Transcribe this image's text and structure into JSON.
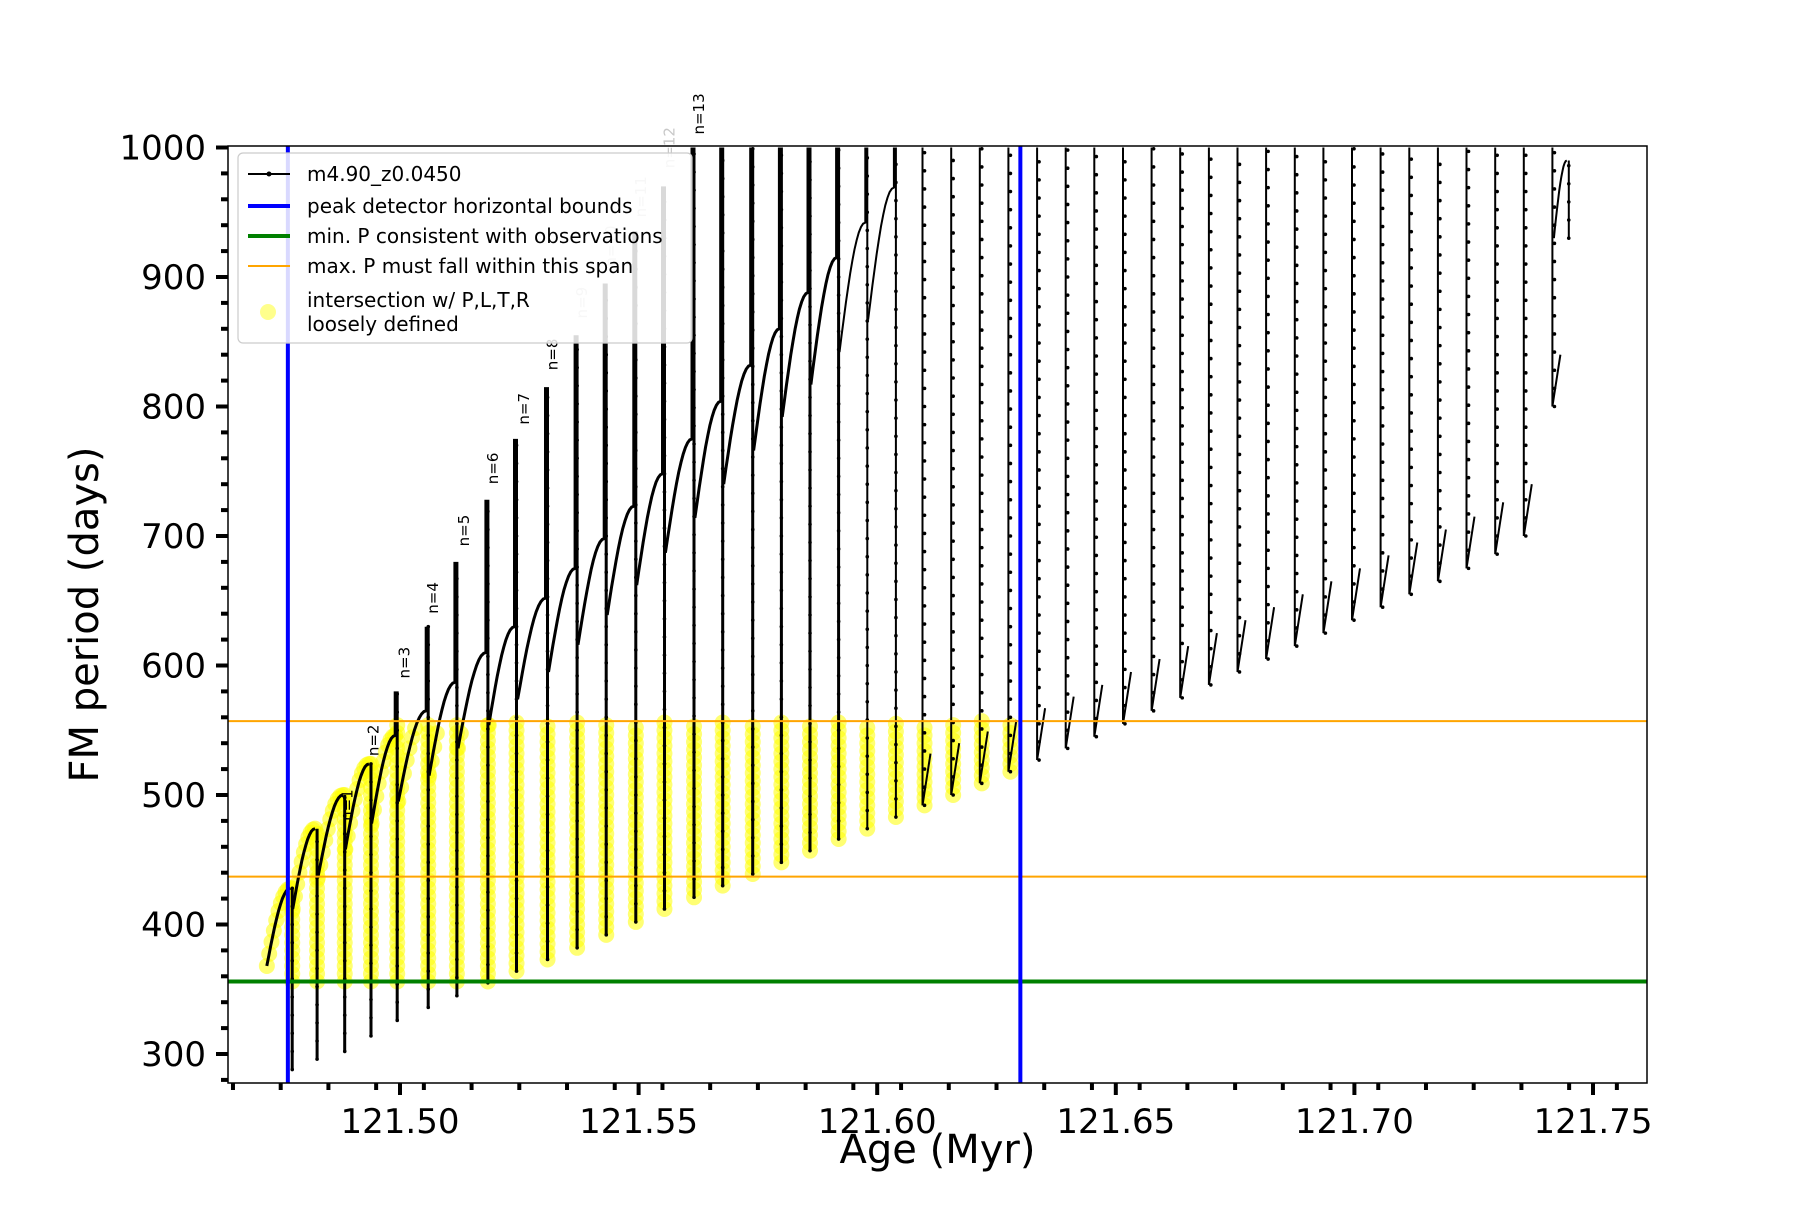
{
  "chart_data": {
    "type": "line",
    "title": "",
    "xlabel": "Age (Myr)",
    "ylabel": "FM period (days)",
    "xlim": [
      121.4625,
      121.7625
    ],
    "ylim": [
      277,
      1000
    ],
    "xticks": [
      "121.50",
      "121.55",
      "121.60",
      "121.65",
      "121.70",
      "121.75"
    ],
    "yticks": [
      "300",
      "400",
      "500",
      "600",
      "700",
      "800",
      "900",
      "1000"
    ],
    "grid": false,
    "legend": {
      "placement": "top-left",
      "entries": [
        {
          "label": "m4.90_z0.0450",
          "color": "#000000",
          "kind": "line-dot"
        },
        {
          "label": "peak detector horizontal bounds",
          "color": "#0000ff",
          "kind": "line"
        },
        {
          "label": "min. P consistent with observations",
          "color": "#008000",
          "kind": "line"
        },
        {
          "label": "max. P must fall within this span",
          "color": "#ffa500",
          "kind": "line"
        },
        {
          "label": "intersection w/ P,L,T,R\nloosely defined",
          "color": "#ffff00",
          "kind": "marker"
        }
      ]
    },
    "vlines": [
      {
        "x": 121.4765,
        "color": "#0000ff"
      },
      {
        "x": 121.63,
        "color": "#0000ff"
      }
    ],
    "hlines": [
      {
        "y": 557,
        "color": "#ffa500"
      },
      {
        "y": 437,
        "color": "#ffa500"
      },
      {
        "y": 356,
        "color": "#008000"
      }
    ],
    "series": [
      {
        "name": "m4.90_z0.0450",
        "color": "#000000",
        "cycles": [
          {
            "x": 121.477,
            "ymin": 288,
            "ymax": 428,
            "peak": 428
          },
          {
            "x": 121.4822,
            "ymin": 296,
            "ymax": 474,
            "peak": 474
          },
          {
            "x": 121.488,
            "ymin": 302,
            "ymax": 500,
            "peak": 500
          },
          {
            "x": 121.4935,
            "ymin": 314,
            "ymax": 524,
            "peak": 524
          },
          {
            "x": 121.499,
            "ymin": 326,
            "ymax": 580,
            "peak": 546
          },
          {
            "x": 121.5055,
            "ymin": 336,
            "ymax": 630,
            "peak": 565
          },
          {
            "x": 121.5115,
            "ymin": 345,
            "ymax": 680,
            "peak": 587
          },
          {
            "x": 121.518,
            "ymin": 355,
            "ymax": 728,
            "peak": 610
          },
          {
            "x": 121.524,
            "ymin": 364,
            "ymax": 775,
            "peak": 630
          },
          {
            "x": 121.5305,
            "ymin": 373,
            "ymax": 815,
            "peak": 652
          },
          {
            "x": 121.5367,
            "ymin": 382,
            "ymax": 855,
            "peak": 675
          },
          {
            "x": 121.5428,
            "ymin": 392,
            "ymax": 895,
            "peak": 698
          },
          {
            "x": 121.549,
            "ymin": 402,
            "ymax": 935,
            "peak": 723
          },
          {
            "x": 121.555,
            "ymin": 412,
            "ymax": 970,
            "peak": 748
          },
          {
            "x": 121.5612,
            "ymin": 421,
            "ymax": 1000,
            "peak": 775
          },
          {
            "x": 121.5672,
            "ymin": 430,
            "ymax": 1000,
            "peak": 804
          },
          {
            "x": 121.5735,
            "ymin": 439,
            "ymax": 1000,
            "peak": 832
          },
          {
            "x": 121.5795,
            "ymin": 448,
            "ymax": 1000,
            "peak": 860
          },
          {
            "x": 121.5855,
            "ymin": 457,
            "ymax": 1000,
            "peak": 888
          },
          {
            "x": 121.5915,
            "ymin": 466,
            "ymax": 1000,
            "peak": 915
          },
          {
            "x": 121.5975,
            "ymin": 474,
            "ymax": 1000,
            "peak": 942
          },
          {
            "x": 121.6035,
            "ymin": 483,
            "ymax": 1000,
            "peak": 969
          },
          {
            "x": 121.6095,
            "ymin": 492,
            "ymax": 1000,
            "peak": 1000
          },
          {
            "x": 121.6155,
            "ymin": 500,
            "ymax": 1000,
            "peak": 1000
          },
          {
            "x": 121.6215,
            "ymin": 509,
            "ymax": 1000,
            "peak": 1000
          },
          {
            "x": 121.6275,
            "ymin": 518,
            "ymax": 1000,
            "peak": 1000
          },
          {
            "x": 121.6335,
            "ymin": 527,
            "ymax": 1000,
            "peak": 1000
          },
          {
            "x": 121.6395,
            "ymin": 536,
            "ymax": 1000,
            "peak": 1000
          },
          {
            "x": 121.6455,
            "ymin": 545,
            "ymax": 1000,
            "peak": 1000
          },
          {
            "x": 121.6515,
            "ymin": 555,
            "ymax": 1000,
            "peak": 1000
          },
          {
            "x": 121.6575,
            "ymin": 565,
            "ymax": 1000,
            "peak": 1000
          },
          {
            "x": 121.6635,
            "ymin": 575,
            "ymax": 1000,
            "peak": 1000
          },
          {
            "x": 121.6695,
            "ymin": 585,
            "ymax": 1000,
            "peak": 1000
          },
          {
            "x": 121.6755,
            "ymin": 595,
            "ymax": 1000,
            "peak": 1000
          },
          {
            "x": 121.6815,
            "ymin": 605,
            "ymax": 1000,
            "peak": 1000
          },
          {
            "x": 121.6875,
            "ymin": 615,
            "ymax": 1000,
            "peak": 1000
          },
          {
            "x": 121.6935,
            "ymin": 625,
            "ymax": 1000,
            "peak": 1000
          },
          {
            "x": 121.6995,
            "ymin": 635,
            "ymax": 1000,
            "peak": 1000
          },
          {
            "x": 121.7055,
            "ymin": 645,
            "ymax": 1000,
            "peak": 1000
          },
          {
            "x": 121.7115,
            "ymin": 655,
            "ymax": 1000,
            "peak": 1000
          },
          {
            "x": 121.7175,
            "ymin": 665,
            "ymax": 1000,
            "peak": 1000
          },
          {
            "x": 121.7235,
            "ymin": 675,
            "ymax": 1000,
            "peak": 1000
          },
          {
            "x": 121.7295,
            "ymin": 686,
            "ymax": 1000,
            "peak": 1000
          },
          {
            "x": 121.7355,
            "ymin": 700,
            "ymax": 1000,
            "peak": 1000
          },
          {
            "x": 121.7415,
            "ymin": 800,
            "ymax": 1000,
            "peak": 1000
          },
          {
            "x": 121.7445,
            "ymin": 930,
            "ymax": 990,
            "peak": 990
          }
        ]
      }
    ],
    "annotations": [
      {
        "text": "n=1",
        "x": 121.49,
        "y": 480,
        "color": "#000000"
      },
      {
        "text": "n=2",
        "x": 121.4955,
        "y": 530,
        "color": "#000000"
      },
      {
        "text": "n=3",
        "x": 121.502,
        "y": 590,
        "color": "#000000"
      },
      {
        "text": "n=4",
        "x": 121.508,
        "y": 640,
        "color": "#000000"
      },
      {
        "text": "n=5",
        "x": 121.5145,
        "y": 692,
        "color": "#000000"
      },
      {
        "text": "n=6",
        "x": 121.5205,
        "y": 740,
        "color": "#000000"
      },
      {
        "text": "n=7",
        "x": 121.527,
        "y": 786,
        "color": "#000000"
      },
      {
        "text": "n=8",
        "x": 121.533,
        "y": 828,
        "color": "#000000"
      },
      {
        "text": "n=9",
        "x": 121.5392,
        "y": 868,
        "color": "#c8c8c8"
      },
      {
        "text": "n=10",
        "x": 121.5453,
        "y": 908,
        "color": "#c8c8c8"
      },
      {
        "text": "n=11",
        "x": 121.5515,
        "y": 946,
        "color": "#c8c8c8"
      },
      {
        "text": "n=12",
        "x": 121.5575,
        "y": 984,
        "color": "#c8c8c8"
      },
      {
        "text": "n=13",
        "x": 121.5637,
        "y": 1010,
        "color": "#000000"
      }
    ]
  }
}
